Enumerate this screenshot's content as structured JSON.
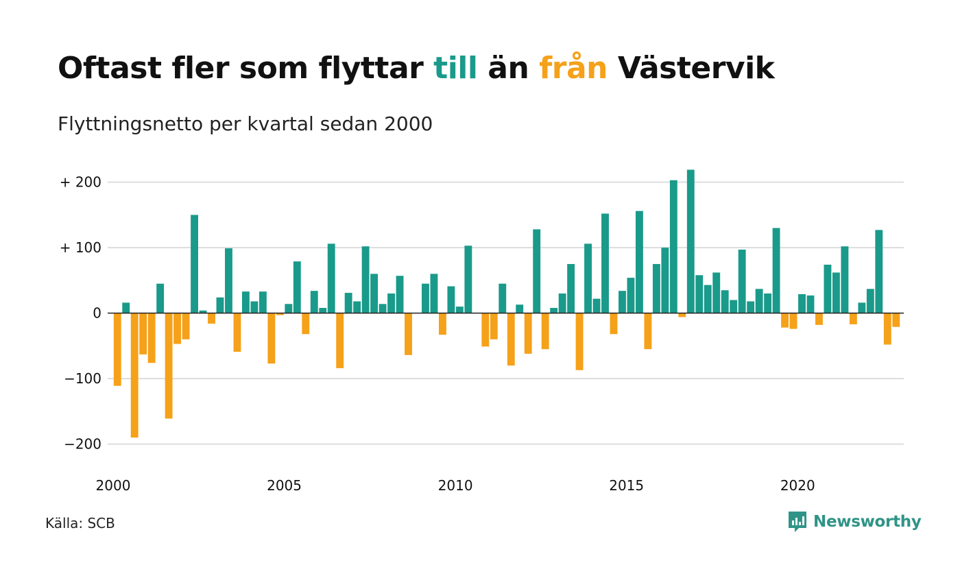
{
  "title": {
    "part1": "Oftast fler som flyttar",
    "highlight_to": "till",
    "part2": "än",
    "highlight_from": "från",
    "part3": "Västervik"
  },
  "subtitle": "Flyttningsnetto per kvartal sedan 2000",
  "source": "Källa: SCB",
  "brand": {
    "name": "Newsworthy",
    "icon": "newsworthy-logo-icon"
  },
  "colors": {
    "positive": "#1a9a8a",
    "negative": "#f5a11a",
    "grid": "#dddddd",
    "zero_line": "#222222",
    "brand": "#2f9487"
  },
  "chart_data": {
    "type": "bar",
    "title": "Oftast fler som flyttar till än från Västervik",
    "subtitle": "Flyttningsnetto per kvartal sedan 2000",
    "xlabel": "",
    "ylabel": "",
    "x_start": 2000.0,
    "x_step": 0.25,
    "xlim": [
      2000,
      2023.1
    ],
    "ylim": [
      -215,
      230
    ],
    "yticks": [
      {
        "value": 200,
        "label": "+ 200"
      },
      {
        "value": 100,
        "label": "+ 100"
      },
      {
        "value": 0,
        "label": "0"
      },
      {
        "value": -100,
        "label": "−100"
      },
      {
        "value": -200,
        "label": "−200"
      }
    ],
    "xticks": [
      {
        "value": 2000,
        "label": "2000"
      },
      {
        "value": 2005,
        "label": "2005"
      },
      {
        "value": 2010,
        "label": "2010"
      },
      {
        "value": 2015,
        "label": "2015"
      },
      {
        "value": 2020,
        "label": "2020"
      }
    ],
    "grid": true,
    "values": [
      -111,
      16,
      -190,
      -63,
      -76,
      45,
      -161,
      -47,
      -40,
      150,
      4,
      -16,
      24,
      99,
      -59,
      33,
      18,
      33,
      -77,
      -3,
      14,
      79,
      -32,
      34,
      8,
      106,
      -84,
      31,
      18,
      102,
      60,
      14,
      30,
      57,
      -64,
      0,
      45,
      60,
      -33,
      41,
      10,
      103,
      0,
      -51,
      -40,
      45,
      -80,
      13,
      -62,
      128,
      -55,
      8,
      30,
      75,
      -87,
      106,
      22,
      152,
      -32,
      34,
      54,
      156,
      -55,
      75,
      100,
      203,
      -6,
      219,
      58,
      43,
      62,
      35,
      20,
      97,
      18,
      37,
      30,
      130,
      -22,
      -24,
      29,
      27,
      -18,
      74,
      62,
      102,
      -17,
      16,
      37,
      127,
      -48,
      -21
    ]
  }
}
